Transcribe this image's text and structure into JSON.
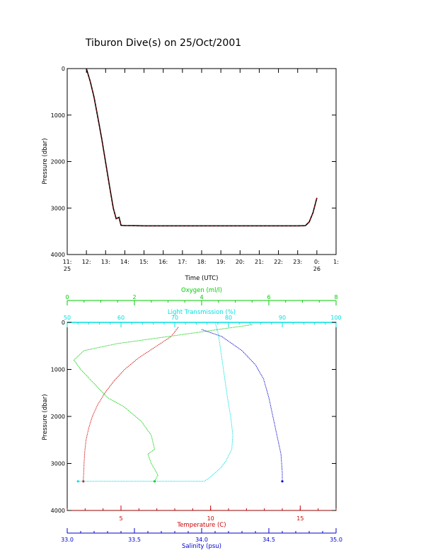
{
  "title": "Tiburon Dive(s) on 25/Oct/2001",
  "colors": {
    "axes": "#000000",
    "temperature": "#cc0000",
    "oxygen": "#00cc00",
    "transmission": "#00e0e0",
    "salinity": "#0000cc",
    "timeseries_dark": "#000000",
    "timeseries_red": "#cc0000"
  },
  "chart_data": [
    {
      "type": "line",
      "xlabel": "Time (UTC)",
      "ylabel": "Pressure (dbar)",
      "xlim": [
        11,
        25
      ],
      "ylim": [
        4000,
        0
      ],
      "x_ticks": [
        {
          "value": 11,
          "label": "11:",
          "sub": "25"
        },
        {
          "value": 12,
          "label": "12:",
          "sub": ""
        },
        {
          "value": 13,
          "label": "13:",
          "sub": ""
        },
        {
          "value": 14,
          "label": "14:",
          "sub": ""
        },
        {
          "value": 15,
          "label": "15:",
          "sub": ""
        },
        {
          "value": 16,
          "label": "16:",
          "sub": ""
        },
        {
          "value": 17,
          "label": "17:",
          "sub": ""
        },
        {
          "value": 18,
          "label": "18:",
          "sub": ""
        },
        {
          "value": 19,
          "label": "19:",
          "sub": ""
        },
        {
          "value": 20,
          "label": "20:",
          "sub": ""
        },
        {
          "value": 21,
          "label": "21:",
          "sub": ""
        },
        {
          "value": 22,
          "label": "22:",
          "sub": ""
        },
        {
          "value": 23,
          "label": "23:",
          "sub": ""
        },
        {
          "value": 24,
          "label": "0:",
          "sub": "26"
        },
        {
          "value": 25,
          "label": "1:",
          "sub": ""
        }
      ],
      "y_ticks": [
        0,
        1000,
        2000,
        3000,
        4000
      ],
      "series": [
        {
          "x": [
            12.0,
            12.2,
            12.4,
            12.6,
            12.8,
            13.0,
            13.2,
            13.4,
            13.55,
            13.7,
            13.8,
            13.9,
            14.0,
            14.5,
            15.0,
            16.0,
            17.0,
            18.0,
            19.0,
            20.0,
            21.0,
            22.0,
            23.0,
            23.4,
            23.6,
            23.8,
            24.0
          ],
          "y": [
            0,
            280,
            620,
            1060,
            1520,
            2020,
            2520,
            3000,
            3230,
            3200,
            3370,
            3375,
            3378,
            3380,
            3382,
            3383,
            3383,
            3383,
            3382,
            3383,
            3382,
            3383,
            3383,
            3380,
            3300,
            3100,
            2780
          ]
        }
      ]
    },
    {
      "type": "line",
      "ylabel": "Pressure (dbar)",
      "ylim": [
        4000,
        0
      ],
      "y_ticks": [
        0,
        1000,
        2000,
        3000,
        4000
      ],
      "axes": {
        "oxygen": {
          "label": "Oxygen (ml/l)",
          "lim": [
            0,
            8
          ],
          "ticks": [
            0,
            2,
            4,
            6,
            8
          ]
        },
        "transmission": {
          "label": "Light Transmission (%)",
          "lim": [
            50,
            100
          ],
          "ticks": [
            50,
            60,
            70,
            80,
            90,
            100
          ]
        },
        "temperature": {
          "label": "Temperature (C)",
          "lim": [
            2,
            17
          ],
          "ticks": [
            5,
            10,
            15
          ]
        },
        "salinity": {
          "label": "Salinity (psu)",
          "lim": [
            33.0,
            35.0
          ],
          "ticks": [
            33.0,
            33.5,
            34.0,
            34.5,
            35.0
          ]
        }
      },
      "series": [
        {
          "axis": "temperature",
          "x": [
            8.2,
            7.8,
            7.0,
            6.0,
            5.2,
            4.6,
            4.1,
            3.7,
            3.4,
            3.2,
            3.05,
            2.98,
            2.94,
            2.92,
            2.9,
            2.9
          ],
          "y": [
            100,
            300,
            500,
            750,
            1000,
            1250,
            1500,
            1750,
            2000,
            2250,
            2500,
            2750,
            3000,
            3200,
            3350,
            3380
          ]
        },
        {
          "axis": "oxygen",
          "x": [
            5.5,
            4.5,
            3.0,
            1.5,
            0.5,
            0.2,
            0.4,
            0.8,
            1.2,
            1.7,
            2.2,
            2.5,
            2.6,
            2.4,
            2.5,
            2.7,
            2.6
          ],
          "y": [
            50,
            150,
            300,
            450,
            600,
            800,
            1000,
            1300,
            1600,
            1800,
            2100,
            2400,
            2700,
            2800,
            3000,
            3250,
            3380
          ]
        },
        {
          "axis": "transmission",
          "x": [
            77.5,
            78.0,
            78.3,
            78.8,
            79.3,
            79.8,
            80.4,
            80.8,
            80.6,
            79.5,
            78.5,
            77.5,
            76.5,
            75.5,
            52.0
          ],
          "y": [
            0,
            200,
            400,
            800,
            1200,
            1600,
            2000,
            2400,
            2700,
            2950,
            3100,
            3200,
            3300,
            3380,
            3380
          ]
        },
        {
          "axis": "salinity",
          "x": [
            34.0,
            34.15,
            34.3,
            34.4,
            34.46,
            34.5,
            34.53,
            34.56,
            34.59,
            34.6,
            34.6
          ],
          "y": [
            150,
            300,
            600,
            900,
            1200,
            1600,
            2000,
            2400,
            2800,
            3200,
            3380
          ]
        }
      ]
    }
  ]
}
